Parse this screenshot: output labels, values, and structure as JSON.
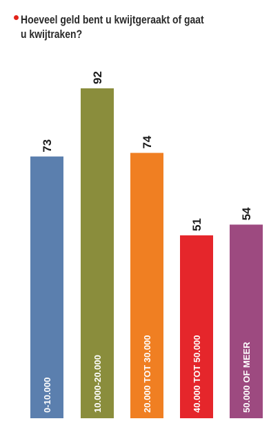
{
  "title": "Hoeveel geld bent u kwijtgeraakt of gaat u kwijtraken?",
  "colors": {
    "bullet": "#e2231a",
    "value_text": "#1a1a1a",
    "label_text": "#ffffff"
  },
  "chart_data": {
    "type": "bar",
    "title": "Hoeveel geld bent u kwijtgeraakt of gaat u kwijtraken?",
    "xlabel": "",
    "ylabel": "",
    "categories": [
      "0-10.000",
      "10.000-20.000",
      "20.000 TOT 30.000",
      "40.000 TOT 50.000",
      "50.000 OF MEER"
    ],
    "values": [
      73,
      92,
      74,
      51,
      54
    ],
    "colors": [
      "#5b7fae",
      "#8a8d3c",
      "#f07f22",
      "#e5262b",
      "#9d4a80"
    ],
    "ylim": [
      0,
      92
    ],
    "grid": false,
    "legend": "none",
    "data_labels": true,
    "label_orientation": "vertical"
  }
}
